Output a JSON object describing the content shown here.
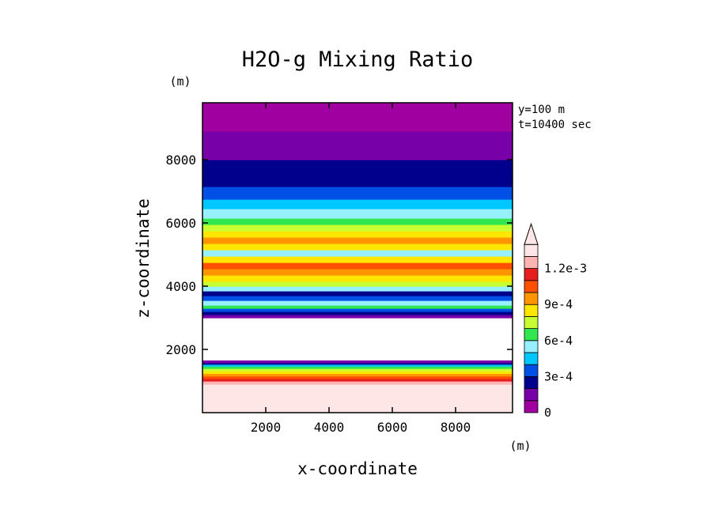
{
  "chart_data": {
    "type": "heatmap",
    "title": "H2O-g Mixing Ratio",
    "xlabel": "x-coordinate",
    "ylabel": "z-coordinate",
    "x_unit": "(m)",
    "y_unit": "(m)",
    "info": [
      "y=100 m",
      "t=10400 sec"
    ],
    "xlim": [
      0,
      9800
    ],
    "ylim": [
      0,
      9800
    ],
    "x_ticks": [
      2000,
      4000,
      6000,
      8000
    ],
    "y_ticks": [
      2000,
      4000,
      6000,
      8000
    ],
    "x_tick_labels": [
      "2000",
      "4000",
      "6000",
      "8000"
    ],
    "y_tick_labels": [
      "2000",
      "4000",
      "6000",
      "8000"
    ],
    "colorbar": {
      "levels": [
        0,
        0.0001,
        0.0002,
        0.0003,
        0.0004,
        0.0005,
        0.0006,
        0.0007,
        0.0008,
        0.0009,
        0.001,
        0.0011,
        0.0012
      ],
      "colors": [
        "#a000a0",
        "#7800a8",
        "#00008c",
        "#0050e6",
        "#00c8ff",
        "#96f0ff",
        "#32e650",
        "#c8ff32",
        "#ffe600",
        "#ff9600",
        "#ff5000",
        "#e61e1e",
        "#ffb4b4",
        "#ffe6e6"
      ],
      "labels": [
        {
          "value": 0,
          "text": "0"
        },
        {
          "value": 0.0003,
          "text": "3e-4"
        },
        {
          "value": 0.0006,
          "text": "6e-4"
        },
        {
          "value": 0.0009,
          "text": "9e-4"
        },
        {
          "value": 0.0012,
          "text": "1.2e-3"
        }
      ],
      "extend": "max"
    },
    "bands": [
      {
        "z": [
          0,
          900
        ],
        "class": 13
      },
      {
        "z": [
          900,
          1000
        ],
        "class": 12
      },
      {
        "z": [
          1000,
          1080
        ],
        "class": 11
      },
      {
        "z": [
          1080,
          1160
        ],
        "class": 10
      },
      {
        "z": [
          1160,
          1240
        ],
        "class": 9
      },
      {
        "z": [
          1240,
          1320
        ],
        "class": 8
      },
      {
        "z": [
          1320,
          1400
        ],
        "class": 7
      },
      {
        "z": [
          1400,
          1470
        ],
        "class": 6
      },
      {
        "z": [
          1470,
          1530
        ],
        "class": 4
      },
      {
        "z": [
          1530,
          1580
        ],
        "class": 2
      },
      {
        "z": [
          1580,
          1650
        ],
        "class": 1
      },
      {
        "z": [
          3000,
          3100
        ],
        "class": 1
      },
      {
        "z": [
          3100,
          3200
        ],
        "class": 2
      },
      {
        "z": [
          3200,
          3300
        ],
        "class": 3
      },
      {
        "z": [
          3300,
          3400
        ],
        "class": 6
      },
      {
        "z": [
          3400,
          3550
        ],
        "class": 5
      },
      {
        "z": [
          3550,
          3700
        ],
        "class": 3
      },
      {
        "z": [
          3700,
          3850
        ],
        "class": 2
      },
      {
        "z": [
          3850,
          4000
        ],
        "class": 5
      },
      {
        "z": [
          4000,
          4150
        ],
        "class": 7
      },
      {
        "z": [
          4150,
          4350
        ],
        "class": 8
      },
      {
        "z": [
          4350,
          4550
        ],
        "class": 9
      },
      {
        "z": [
          4550,
          4750
        ],
        "class": 10
      },
      {
        "z": [
          4750,
          4950
        ],
        "class": 8
      },
      {
        "z": [
          4950,
          5150
        ],
        "class": 5
      },
      {
        "z": [
          5150,
          5350
        ],
        "class": 8
      },
      {
        "z": [
          5350,
          5550
        ],
        "class": 9
      },
      {
        "z": [
          5550,
          5750
        ],
        "class": 8
      },
      {
        "z": [
          5750,
          5950
        ],
        "class": 7
      },
      {
        "z": [
          5950,
          6150
        ],
        "class": 6
      },
      {
        "z": [
          6150,
          6450
        ],
        "class": 5
      },
      {
        "z": [
          6450,
          6750
        ],
        "class": 4
      },
      {
        "z": [
          6750,
          7150
        ],
        "class": 3
      },
      {
        "z": [
          7150,
          7500
        ],
        "class": 2
      },
      {
        "z": [
          7500,
          8000
        ],
        "class": 2
      },
      {
        "z": [
          8000,
          8500
        ],
        "class": 1
      },
      {
        "z": [
          8500,
          8900
        ],
        "class": 1
      },
      {
        "z": [
          8900,
          9800
        ],
        "class": 0
      }
    ]
  }
}
